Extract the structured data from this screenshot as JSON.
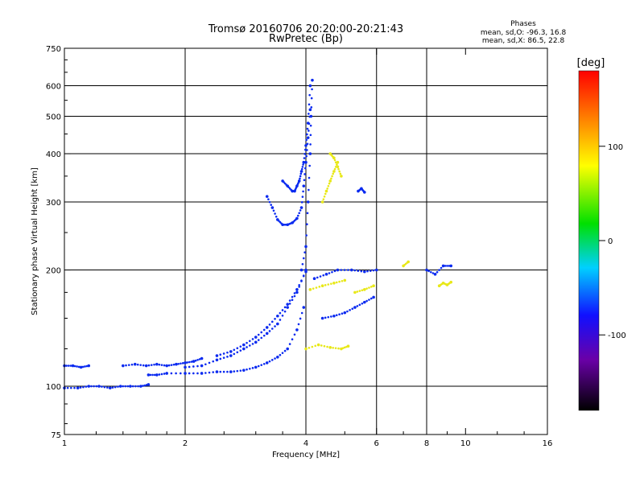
{
  "chart_data": {
    "type": "scatter",
    "title": "Tromsø 20160706 20:20:00-20:21:43",
    "subtitle": "RwPretec (Bp)",
    "xlabel": "Frequency [MHz]",
    "ylabel": "Stationary phase Virtual Height [km]",
    "xscale": "log",
    "yscale": "log",
    "xlim": [
      1,
      16
    ],
    "ylim": [
      75,
      750
    ],
    "x_ticks": [
      1,
      2,
      4,
      6,
      8,
      10,
      16
    ],
    "x_tick_labels": [
      "1",
      "2",
      "4",
      "6",
      "8",
      "10",
      "16"
    ],
    "y_ticks": [
      75,
      100,
      200,
      300,
      400,
      500,
      600,
      750
    ],
    "y_tick_labels": [
      "75",
      "100",
      "200",
      "300",
      "400",
      "500",
      "600",
      "750"
    ],
    "grid_x": [
      2,
      4,
      6,
      8
    ],
    "grid_y": [
      100,
      200,
      300,
      400,
      500,
      600
    ],
    "grid": true,
    "legend": {
      "title": "Phases",
      "lines": [
        "mean, sd,O: -96.3, 16.8",
        "mean, sd,X:  86.5, 22.8"
      ]
    },
    "colorbar": {
      "label": "[deg]",
      "range": [
        -180,
        180
      ],
      "ticks": [
        100,
        0,
        -100
      ],
      "tick_labels": [
        "100",
        "0",
        "-100"
      ]
    },
    "series": [
      {
        "name": "O-mode",
        "marker_color": "#0a2af0",
        "segments": [
          {
            "x": [
              1.0,
              1.08,
              1.15,
              1.22,
              1.3,
              1.38,
              1.46,
              1.55,
              1.62
            ],
            "y": [
              99,
              99,
              100,
              100,
              99,
              100,
              100,
              100,
              101
            ]
          },
          {
            "x": [
              1.0,
              1.05,
              1.1,
              1.15
            ],
            "y": [
              113,
              113,
              112,
              113
            ]
          },
          {
            "x": [
              1.4,
              1.5,
              1.6,
              1.7,
              1.8,
              1.9,
              2.0,
              2.1,
              2.2
            ],
            "y": [
              113,
              114,
              113,
              114,
              113,
              114,
              115,
              116,
              118
            ]
          },
          {
            "x": [
              1.62,
              1.7,
              1.8,
              2.0,
              2.2,
              2.4,
              2.6,
              2.8,
              3.0,
              3.2,
              3.4,
              3.6,
              3.8,
              3.95
            ],
            "y": [
              107,
              107,
              108,
              108,
              108,
              109,
              109,
              110,
              112,
              115,
              119,
              125,
              140,
              160
            ]
          },
          {
            "x": [
              2.0,
              2.2,
              2.4,
              2.6,
              2.8,
              3.0,
              3.2,
              3.4,
              3.6,
              3.8,
              4.0
            ],
            "y": [
              112,
              113,
              117,
              120,
              125,
              130,
              137,
              145,
              160,
              175,
              200
            ]
          },
          {
            "x": [
              2.4,
              2.6,
              2.8,
              3.0,
              3.2,
              3.4,
              3.6,
              3.8,
              4.0
            ],
            "y": [
              120,
              123,
              128,
              134,
              142,
              152,
              163,
              178,
              198
            ]
          },
          {
            "x": [
              3.2,
              3.3,
              3.4,
              3.5,
              3.6,
              3.7,
              3.8,
              3.9,
              3.95,
              4.0,
              4.05,
              4.1
            ],
            "y": [
              310,
              290,
              270,
              262,
              262,
              265,
              272,
              290,
              330,
              380,
              440,
              520
            ]
          },
          {
            "x": [
              3.5,
              3.6,
              3.7,
              3.75,
              3.8,
              3.85,
              3.9,
              3.95,
              4.0,
              4.05,
              4.1
            ],
            "y": [
              340,
              330,
              320,
              320,
              330,
              340,
              360,
              380,
              420,
              480,
              600
            ]
          },
          {
            "x": [
              3.9,
              4.0,
              4.05,
              4.1,
              4.12,
              4.15
            ],
            "y": [
              200,
              230,
              300,
              400,
              500,
              620
            ]
          },
          {
            "x": [
              4.2,
              4.5,
              4.8,
              5.2,
              5.6,
              6.0
            ],
            "y": [
              190,
              195,
              200,
              200,
              198,
              200
            ]
          },
          {
            "x": [
              4.4,
              4.7,
              5.0,
              5.3,
              5.6,
              5.9
            ],
            "y": [
              150,
              152,
              155,
              160,
              165,
              170
            ]
          },
          {
            "x": [
              5.4,
              5.5,
              5.6
            ],
            "y": [
              320,
              325,
              318
            ]
          },
          {
            "x": [
              8.0,
              8.4,
              8.8,
              9.2
            ],
            "y": [
              200,
              195,
              205,
              205
            ]
          }
        ]
      },
      {
        "name": "X-mode",
        "marker_color": "#e8e818",
        "segments": [
          {
            "x": [
              4.4,
              4.5,
              4.6,
              4.7,
              4.8
            ],
            "y": [
              300,
              320,
              340,
              360,
              380
            ]
          },
          {
            "x": [
              4.6,
              4.7,
              4.8,
              4.9
            ],
            "y": [
              400,
              390,
              370,
              350
            ]
          },
          {
            "x": [
              4.0,
              4.3,
              4.6,
              4.9,
              5.1
            ],
            "y": [
              125,
              128,
              126,
              125,
              127
            ]
          },
          {
            "x": [
              4.1,
              4.4,
              4.7,
              5.0
            ],
            "y": [
              178,
              182,
              185,
              188
            ]
          },
          {
            "x": [
              5.3,
              5.6,
              5.9
            ],
            "y": [
              175,
              178,
              182
            ]
          },
          {
            "x": [
              8.6,
              8.8,
              9.0,
              9.2
            ],
            "y": [
              182,
              185,
              183,
              186
            ]
          },
          {
            "x": [
              7.0,
              7.2
            ],
            "y": [
              205,
              210
            ]
          }
        ]
      }
    ]
  }
}
